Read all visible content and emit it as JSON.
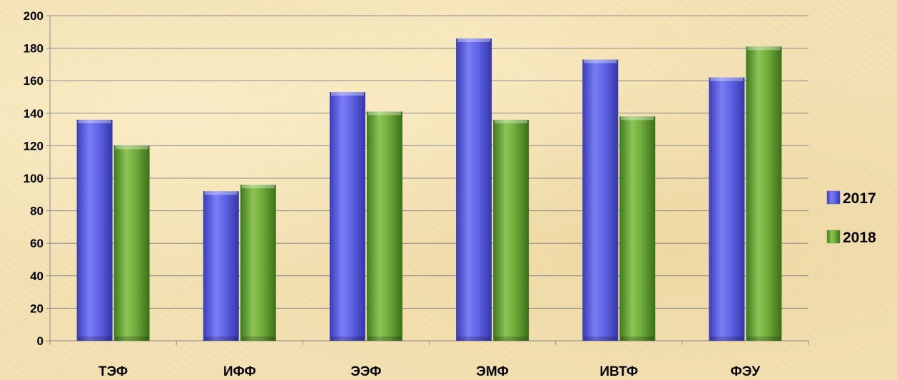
{
  "chart_data": {
    "type": "bar",
    "categories": [
      "ТЭФ",
      "ИФФ",
      "ЭЭФ",
      "ЭМФ",
      "ИВТФ",
      "ФЭУ"
    ],
    "series": [
      {
        "name": "2017",
        "values": [
          136,
          92,
          153,
          186,
          173,
          162
        ],
        "color": "#5a5ee0"
      },
      {
        "name": "2018",
        "values": [
          120,
          96,
          141,
          136,
          138,
          181
        ],
        "color": "#6fa838"
      }
    ],
    "yticks": [
      0,
      20,
      40,
      60,
      80,
      100,
      120,
      140,
      160,
      180,
      200
    ],
    "ylim": [
      0,
      200
    ],
    "grid": true,
    "legend_position": "right"
  }
}
